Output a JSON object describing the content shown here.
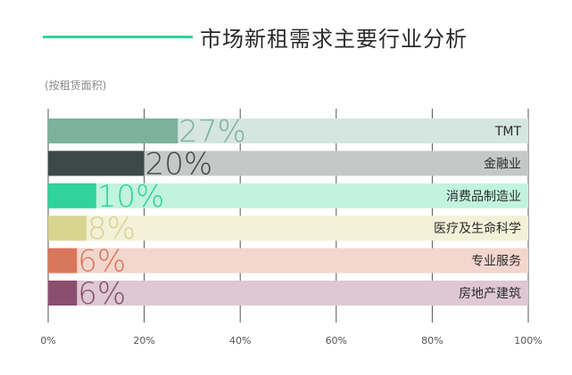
{
  "chart_data": {
    "type": "bar",
    "orientation": "horizontal",
    "title": "市场新租需求主要行业分析",
    "subtitle": "(按租赁面积)",
    "categories": [
      "TMT",
      "金融业",
      "消费品制造业",
      "医疗及生命科学",
      "专业服务",
      "房地产建筑"
    ],
    "values": [
      27,
      20,
      10,
      8,
      6,
      6
    ],
    "value_labels": [
      "27%",
      "20%",
      "10%",
      "8%",
      "6%",
      "6%"
    ],
    "bar_colors": [
      "#7db19e",
      "#3b4a48",
      "#2fd39b",
      "#d9d490",
      "#d9775c",
      "#8a4f6f"
    ],
    "track_colors": [
      "#d5e6e0",
      "#c6c8c8",
      "#c2f3df",
      "#f3f1d8",
      "#f3d6cd",
      "#ddc8d3"
    ],
    "label_colors": [
      "#7db19e",
      "#3b4a48",
      "#2fd39b",
      "#d9d490",
      "#d9775c",
      "#8a4f6f"
    ],
    "xlim": [
      0,
      100
    ],
    "xticks": [
      "0%",
      "20%",
      "40%",
      "60%",
      "80%",
      "100%"
    ],
    "xtick_values": [
      0,
      20,
      40,
      60,
      80,
      100
    ],
    "grid": true
  }
}
